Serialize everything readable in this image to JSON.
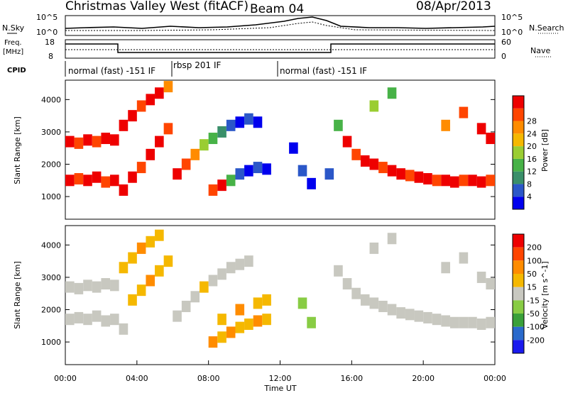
{
  "header": {
    "station": "Christmas Valley West (fitACF)",
    "beam": "Beam 04",
    "date": "08/Apr/2013"
  },
  "top_strip": {
    "left_label": "N.Sky",
    "left_ticks": [
      "10^5",
      "10^0"
    ],
    "right_ticks": [
      "10^5",
      "10^0"
    ],
    "right_label": "N.Search"
  },
  "freq_strip": {
    "left_label_1": "Freq.",
    "left_label_2": "[MHz]",
    "left_ticks": [
      "18",
      "8"
    ],
    "right_ticks": [
      "60",
      "0"
    ],
    "right_label": "Nave"
  },
  "cpid": {
    "label": "CPID",
    "modes": [
      "normal (fast) -151 IF",
      "rbsp 201 IF",
      "normal (fast) -151 IF"
    ]
  },
  "colors": {
    "power_scale": [
      "#0000ee",
      "#2b57c8",
      "#3a8f6a",
      "#47b247",
      "#9acd32",
      "#f5b800",
      "#ff8c00",
      "#ff4500",
      "#ee0000"
    ],
    "velocity_scale": [
      "#1a1aee",
      "#2a6acc",
      "#3aa03a",
      "#88cc44",
      "#c8c8c0",
      "#f5b800",
      "#ff8c00",
      "#ff4500",
      "#ee0000"
    ]
  },
  "chart_data": [
    {
      "type": "heatmap",
      "title": "Power",
      "ylabel": "Slant Range [km]",
      "y_ticks": [
        "1000",
        "2000",
        "3000",
        "4000"
      ],
      "ylim": [
        300,
        4600
      ],
      "colorbar_label": "Power [dB]",
      "colorbar_ticks": [
        "4",
        "8",
        "12",
        "16",
        "20",
        "24",
        "28"
      ],
      "series": [
        {
          "name": "Power",
          "points": [
            [
              0.0,
              2700,
              "#ee0000"
            ],
            [
              0.5,
              2650,
              "#ff4500"
            ],
            [
              1.0,
              2750,
              "#ee0000"
            ],
            [
              1.5,
              2700,
              "#ff4500"
            ],
            [
              2.0,
              2800,
              "#ee0000"
            ],
            [
              2.5,
              2750,
              "#ee0000"
            ],
            [
              0.0,
              1500,
              "#ee0000"
            ],
            [
              0.5,
              1550,
              "#ff4500"
            ],
            [
              1.0,
              1500,
              "#ee0000"
            ],
            [
              1.5,
              1600,
              "#ee0000"
            ],
            [
              2.0,
              1450,
              "#ff4500"
            ],
            [
              2.5,
              1500,
              "#ee0000"
            ],
            [
              3.0,
              1200,
              "#ee0000"
            ],
            [
              3.5,
              1600,
              "#ee0000"
            ],
            [
              4.0,
              1900,
              "#ff4500"
            ],
            [
              4.5,
              2300,
              "#ee0000"
            ],
            [
              5.0,
              2700,
              "#ee0000"
            ],
            [
              5.5,
              3100,
              "#ff4500"
            ],
            [
              3.0,
              3200,
              "#ee0000"
            ],
            [
              3.5,
              3500,
              "#ee0000"
            ],
            [
              4.0,
              3800,
              "#ff4500"
            ],
            [
              4.5,
              4000,
              "#ee0000"
            ],
            [
              5.0,
              4200,
              "#ee0000"
            ],
            [
              5.5,
              4400,
              "#ff8c00"
            ],
            [
              6.0,
              1700,
              "#ee0000"
            ],
            [
              6.5,
              2000,
              "#ff4500"
            ],
            [
              7.0,
              2300,
              "#ff8c00"
            ],
            [
              7.5,
              2600,
              "#9acd32"
            ],
            [
              8.0,
              2800,
              "#47b247"
            ],
            [
              8.5,
              3000,
              "#3a8f6a"
            ],
            [
              9.0,
              3200,
              "#2b57c8"
            ],
            [
              9.5,
              3300,
              "#0000ee"
            ],
            [
              10.0,
              3400,
              "#2b57c8"
            ],
            [
              10.5,
              3300,
              "#0000ee"
            ],
            [
              8.0,
              1200,
              "#ff4500"
            ],
            [
              8.5,
              1350,
              "#ee0000"
            ],
            [
              9.0,
              1500,
              "#47b247"
            ],
            [
              9.5,
              1700,
              "#2b57c8"
            ],
            [
              10.0,
              1800,
              "#0000ee"
            ],
            [
              10.5,
              1900,
              "#2b57c8"
            ],
            [
              11.0,
              1850,
              "#0000ee"
            ],
            [
              12.5,
              2500,
              "#0000ee"
            ],
            [
              13.0,
              1800,
              "#2b57c8"
            ],
            [
              13.5,
              1400,
              "#0000ee"
            ],
            [
              14.5,
              1700,
              "#2b57c8"
            ],
            [
              15.0,
              3200,
              "#47b247"
            ],
            [
              15.5,
              2700,
              "#ee0000"
            ],
            [
              16.0,
              2300,
              "#ff4500"
            ],
            [
              16.5,
              2100,
              "#ee0000"
            ],
            [
              17.0,
              2000,
              "#ee0000"
            ],
            [
              17.5,
              1900,
              "#ff4500"
            ],
            [
              18.0,
              1800,
              "#ee0000"
            ],
            [
              18.5,
              1700,
              "#ee0000"
            ],
            [
              19.0,
              1650,
              "#ff4500"
            ],
            [
              19.5,
              1600,
              "#ee0000"
            ],
            [
              20.0,
              1550,
              "#ee0000"
            ],
            [
              20.5,
              1500,
              "#ff4500"
            ],
            [
              21.0,
              1500,
              "#ee0000"
            ],
            [
              21.5,
              1450,
              "#ee0000"
            ],
            [
              22.0,
              1500,
              "#ff4500"
            ],
            [
              22.5,
              1500,
              "#ee0000"
            ],
            [
              23.0,
              1450,
              "#ee0000"
            ],
            [
              23.5,
              1500,
              "#ff4500"
            ],
            [
              21.0,
              3200,
              "#ff8c00"
            ],
            [
              22.0,
              3600,
              "#ff4500"
            ],
            [
              23.0,
              3100,
              "#ee0000"
            ],
            [
              23.5,
              2800,
              "#ee0000"
            ],
            [
              18.0,
              4200,
              "#47b247"
            ],
            [
              17.0,
              3800,
              "#9acd32"
            ]
          ]
        }
      ]
    },
    {
      "type": "heatmap",
      "title": "Velocity",
      "ylabel": "Slant Range [km]",
      "y_ticks": [
        "1000",
        "2000",
        "3000",
        "4000"
      ],
      "ylim": [
        300,
        4600
      ],
      "xlabel": "Time UT",
      "x_ticks": [
        "00:00",
        "04:00",
        "08:00",
        "12:00",
        "16:00",
        "20:00",
        "00:00"
      ],
      "xlim": [
        0,
        24
      ],
      "colorbar_label": "Velocity [m s^-1]",
      "colorbar_ticks": [
        "200",
        "100",
        "50",
        "15",
        "-15",
        "-50",
        "-100",
        "-200"
      ],
      "series": [
        {
          "name": "Velocity",
          "points": [
            [
              0.0,
              2700,
              "#c8c8c0"
            ],
            [
              0.5,
              2650,
              "#c8c8c0"
            ],
            [
              1.0,
              2750,
              "#c8c8c0"
            ],
            [
              1.5,
              2700,
              "#c8c8c0"
            ],
            [
              2.0,
              2800,
              "#c8c8c0"
            ],
            [
              2.5,
              2750,
              "#c8c8c0"
            ],
            [
              0.0,
              1700,
              "#c8c8c0"
            ],
            [
              0.5,
              1750,
              "#c8c8c0"
            ],
            [
              1.0,
              1700,
              "#c8c8c0"
            ],
            [
              1.5,
              1800,
              "#c8c8c0"
            ],
            [
              2.0,
              1650,
              "#c8c8c0"
            ],
            [
              2.5,
              1700,
              "#c8c8c0"
            ],
            [
              3.0,
              1400,
              "#c8c8c0"
            ],
            [
              3.5,
              2300,
              "#f5b800"
            ],
            [
              4.0,
              2600,
              "#f5b800"
            ],
            [
              4.5,
              2900,
              "#ff8c00"
            ],
            [
              5.0,
              3200,
              "#f5b800"
            ],
            [
              5.5,
              3500,
              "#f5b800"
            ],
            [
              3.0,
              3300,
              "#f5b800"
            ],
            [
              3.5,
              3600,
              "#f5b800"
            ],
            [
              4.0,
              3900,
              "#ff8c00"
            ],
            [
              4.5,
              4100,
              "#f5b800"
            ],
            [
              5.0,
              4300,
              "#f5b800"
            ],
            [
              6.0,
              1800,
              "#c8c8c0"
            ],
            [
              6.5,
              2100,
              "#c8c8c0"
            ],
            [
              7.0,
              2400,
              "#c8c8c0"
            ],
            [
              7.5,
              2700,
              "#f5b800"
            ],
            [
              8.0,
              2900,
              "#c8c8c0"
            ],
            [
              8.5,
              3100,
              "#c8c8c0"
            ],
            [
              9.0,
              3300,
              "#c8c8c0"
            ],
            [
              9.5,
              3400,
              "#c8c8c0"
            ],
            [
              10.0,
              3500,
              "#c8c8c0"
            ],
            [
              8.0,
              1000,
              "#ff8c00"
            ],
            [
              8.5,
              1150,
              "#f5b800"
            ],
            [
              9.0,
              1300,
              "#ff8c00"
            ],
            [
              9.5,
              1450,
              "#f5b800"
            ],
            [
              10.0,
              1550,
              "#f5b800"
            ],
            [
              10.5,
              1650,
              "#ff8c00"
            ],
            [
              11.0,
              1700,
              "#f5b800"
            ],
            [
              8.5,
              1700,
              "#f5b800"
            ],
            [
              9.5,
              2000,
              "#ff8c00"
            ],
            [
              10.5,
              2200,
              "#f5b800"
            ],
            [
              11.0,
              2300,
              "#f5b800"
            ],
            [
              13.0,
              2200,
              "#88cc44"
            ],
            [
              13.5,
              1600,
              "#88cc44"
            ],
            [
              15.0,
              3200,
              "#c8c8c0"
            ],
            [
              15.5,
              2800,
              "#c8c8c0"
            ],
            [
              16.0,
              2500,
              "#c8c8c0"
            ],
            [
              16.5,
              2300,
              "#c8c8c0"
            ],
            [
              17.0,
              2200,
              "#c8c8c0"
            ],
            [
              17.5,
              2100,
              "#c8c8c0"
            ],
            [
              18.0,
              2000,
              "#c8c8c0"
            ],
            [
              18.5,
              1900,
              "#c8c8c0"
            ],
            [
              19.0,
              1850,
              "#c8c8c0"
            ],
            [
              19.5,
              1800,
              "#c8c8c0"
            ],
            [
              20.0,
              1750,
              "#c8c8c0"
            ],
            [
              20.5,
              1700,
              "#c8c8c0"
            ],
            [
              21.0,
              1650,
              "#c8c8c0"
            ],
            [
              21.5,
              1600,
              "#c8c8c0"
            ],
            [
              22.0,
              1600,
              "#c8c8c0"
            ],
            [
              22.5,
              1600,
              "#c8c8c0"
            ],
            [
              23.0,
              1550,
              "#c8c8c0"
            ],
            [
              23.5,
              1600,
              "#c8c8c0"
            ],
            [
              21.0,
              3300,
              "#c8c8c0"
            ],
            [
              22.0,
              3600,
              "#c8c8c0"
            ],
            [
              23.0,
              3000,
              "#c8c8c0"
            ],
            [
              23.5,
              2800,
              "#c8c8c0"
            ],
            [
              18.0,
              4200,
              "#c8c8c0"
            ],
            [
              17.0,
              3900,
              "#c8c8c0"
            ]
          ]
        }
      ]
    }
  ]
}
